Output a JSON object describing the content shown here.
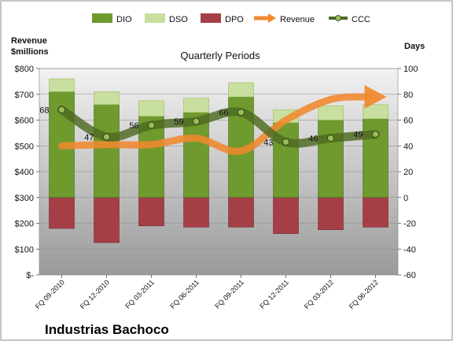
{
  "colors": {
    "dio": "#6f9a2e",
    "dso": "#c9dfa0",
    "dpo": "#a43f46",
    "revenue": "#f0892d",
    "ccc": "#4d6a20",
    "plot_bg_top": "#f2f2f2",
    "plot_bg_bottom": "#9a9a9a"
  },
  "chart_data": {
    "type": "bar",
    "title": "Quarterly Periods",
    "company": "Industrias Bachoco",
    "left_axis_title_line1": "Revenue",
    "left_axis_title_line2": "$millions",
    "right_axis_title": "Days",
    "categories": [
      "FQ 09-2010",
      "FQ 12-2010",
      "FQ 03-2011",
      "FQ 06-2011",
      "FQ 09-2011",
      "FQ 12-2011",
      "FQ 03-2012",
      "FQ 06-2012"
    ],
    "left_axis": {
      "min": 0,
      "max": 800,
      "step": 100,
      "tick_labels": [
        "$-",
        "$100",
        "$200",
        "$300",
        "$400",
        "$500",
        "$600",
        "$700",
        "$800"
      ]
    },
    "right_axis": {
      "min": -60,
      "max": 100,
      "step": 20,
      "tick_labels": [
        "-60",
        "-40",
        "-20",
        "0",
        "20",
        "40",
        "60",
        "80",
        "100"
      ]
    },
    "series": [
      {
        "name": "DIO",
        "axis": "right",
        "kind": "stacked-bar",
        "values": [
          82,
          72,
          63,
          66,
          78,
          58,
          60,
          61
        ]
      },
      {
        "name": "DSO",
        "axis": "right",
        "kind": "stacked-bar",
        "values": [
          10,
          10,
          12,
          11,
          11,
          10,
          11,
          11
        ]
      },
      {
        "name": "DPO",
        "axis": "right",
        "kind": "bar-below-zero",
        "values": [
          -24,
          -35,
          -22,
          -23,
          -23,
          -28,
          -25,
          -23
        ]
      },
      {
        "name": "Revenue",
        "axis": "left",
        "kind": "line",
        "values": [
          500,
          505,
          505,
          530,
          480,
          600,
          680,
          690
        ]
      },
      {
        "name": "CCC",
        "axis": "right",
        "kind": "line",
        "values": [
          68,
          47,
          56,
          59,
          66,
          43,
          46,
          49
        ]
      }
    ],
    "ccc_labels": [
      "68",
      "47",
      "56",
      "59",
      "66",
      "43",
      "46",
      "49"
    ],
    "legend_position": "top",
    "grid": true
  }
}
